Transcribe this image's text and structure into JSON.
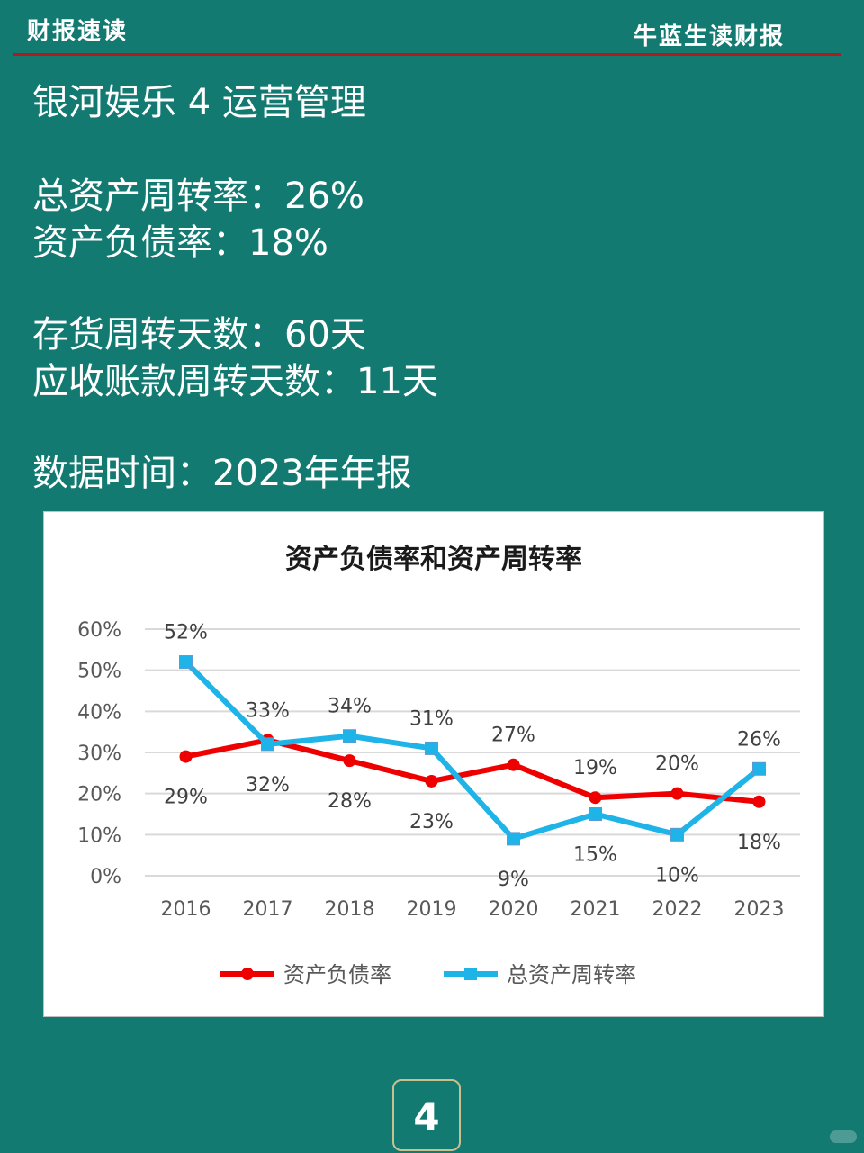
{
  "header": {
    "left_title": "财报速读",
    "right_title": "牛蓝生读财报"
  },
  "info": {
    "heading": "银河娱乐 4 运营管理",
    "asset_turnover": "总资产周转率：26%",
    "debt_ratio": "资产负债率：18%",
    "inventory_days": "存货周转天数：60天",
    "receivable_days": "应收账款周转天数：11天",
    "data_time": "数据时间：2023年年报"
  },
  "page_number": "4",
  "colors": {
    "background": "#137a72",
    "debt_series": "#ee0000",
    "turnover_series": "#1eb4e8",
    "header_rule": "#b01a1a"
  },
  "chart_data": {
    "type": "line",
    "title": "资产负债率和资产周转率",
    "xlabel": "",
    "ylabel": "",
    "categories": [
      "2016",
      "2017",
      "2018",
      "2019",
      "2020",
      "2021",
      "2022",
      "2023"
    ],
    "ylim": [
      0,
      60
    ],
    "yticks": [
      "0%",
      "10%",
      "20%",
      "30%",
      "40%",
      "50%",
      "60%"
    ],
    "grid": true,
    "legend_position": "bottom",
    "series": [
      {
        "name": "资产负债率",
        "values": [
          29,
          33,
          28,
          23,
          27,
          19,
          20,
          18
        ],
        "labels": [
          "29%",
          "33%",
          "28%",
          "23%",
          "27%",
          "19%",
          "20%",
          "18%"
        ],
        "marker": "circle",
        "color": "#ee0000"
      },
      {
        "name": "总资产周转率",
        "values": [
          52,
          32,
          34,
          31,
          9,
          15,
          10,
          26
        ],
        "labels": [
          "52%",
          "32%",
          "34%",
          "31%",
          "9%",
          "15%",
          "10%",
          "26%"
        ],
        "marker": "square",
        "color": "#1eb4e8"
      }
    ]
  }
}
